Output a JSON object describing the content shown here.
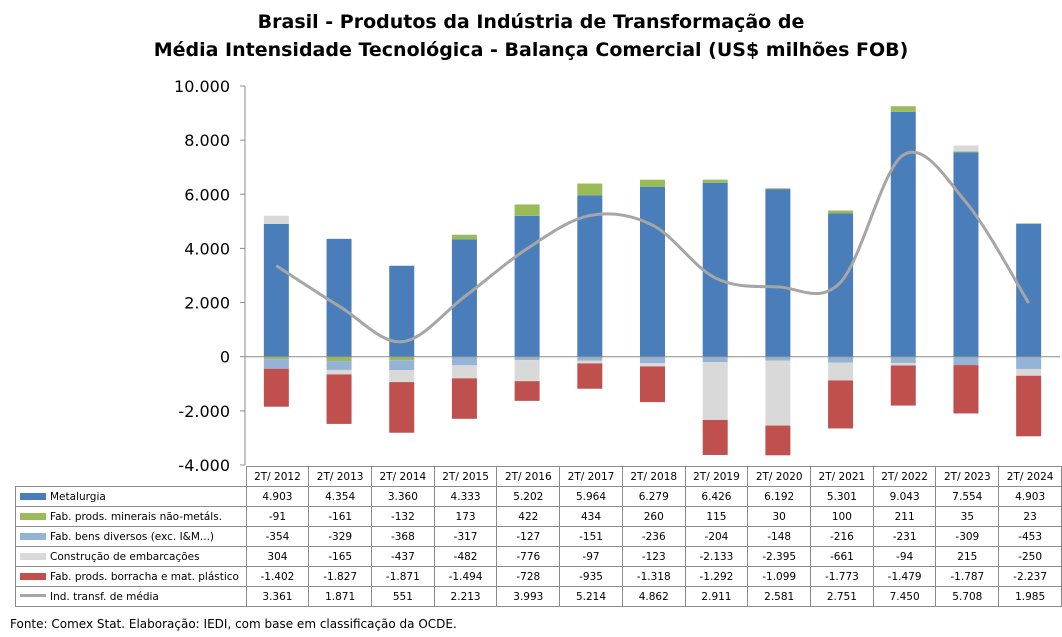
{
  "title": {
    "line1": "Brasil - Produtos da Indústria de Transformação de",
    "line2": "Média Intensidade Tecnológica - Balança Comercial (US$ milhões FOB)"
  },
  "source_note": "Fonte:  Comex Stat. Elaboração: IEDI, com base em classificação da OCDE.",
  "chart_data": {
    "type": "bar",
    "stacked": true,
    "title": "Brasil - Produtos da Indústria de Transformação de Média Intensidade Tecnológica - Balança Comercial (US$ milhões FOB)",
    "categories": [
      "2T/ 2012",
      "2T/ 2013",
      "2T/ 2014",
      "2T/ 2015",
      "2T/ 2016",
      "2T/ 2017",
      "2T/ 2018",
      "2T/ 2019",
      "2T/ 2020",
      "2T/ 2021",
      "2T/ 2022",
      "2T/ 2023",
      "2T/ 2024"
    ],
    "ylim": [
      -4000,
      10000
    ],
    "yticks": [
      -4000,
      -2000,
      0,
      2000,
      4000,
      6000,
      8000,
      10000
    ],
    "ytick_labels": [
      "-4.000",
      "-2.000",
      "0",
      "2.000",
      "4.000",
      "6.000",
      "8.000",
      "10.000"
    ],
    "grid": false,
    "legend": "data table below chart",
    "series": [
      {
        "name": "Metalurgia",
        "kind": "bar",
        "color": "#4a7ebb",
        "values": [
          4903,
          4354,
          3360,
          4333,
          5202,
          5964,
          6279,
          6426,
          6192,
          5301,
          9043,
          7554,
          4903
        ],
        "labels": [
          "4.903",
          "4.354",
          "3.360",
          "4.333",
          "5.202",
          "5.964",
          "6.279",
          "6.426",
          "6.192",
          "5.301",
          "9.043",
          "7.554",
          "4.903"
        ]
      },
      {
        "name": "Fab. prods. minerais não-metáls.",
        "kind": "bar",
        "color": "#9bbb59",
        "values": [
          -91,
          -161,
          -132,
          173,
          422,
          434,
          260,
          115,
          30,
          100,
          211,
          35,
          23
        ],
        "labels": [
          "-91",
          "-161",
          "-132",
          "173",
          "422",
          "434",
          "260",
          "115",
          "30",
          "100",
          "211",
          "35",
          "23"
        ]
      },
      {
        "name": "Fab. bens diversos (exc. I&M...)",
        "kind": "bar",
        "color": "#95b3d7",
        "values": [
          -354,
          -329,
          -368,
          -317,
          -127,
          -151,
          -236,
          -204,
          -148,
          -216,
          -231,
          -309,
          -453
        ],
        "labels": [
          "-354",
          "-329",
          "-368",
          "-317",
          "-127",
          "-151",
          "-236",
          "-204",
          "-148",
          "-216",
          "-231",
          "-309",
          "-453"
        ]
      },
      {
        "name": "Construção de embarcações",
        "kind": "bar",
        "color": "#d9d9d9",
        "values": [
          304,
          -165,
          -437,
          -482,
          -776,
          -97,
          -123,
          -2133,
          -2395,
          -661,
          -94,
          215,
          -250
        ],
        "labels": [
          "304",
          "-165",
          "-437",
          "-482",
          "-776",
          "-97",
          "-123",
          "-2.133",
          "-2.395",
          "-661",
          "-94",
          "215",
          "-250"
        ]
      },
      {
        "name": "Fab. prods. borracha e mat. plástico",
        "kind": "bar",
        "color": "#c0504d",
        "values": [
          -1402,
          -1827,
          -1871,
          -1494,
          -728,
          -935,
          -1318,
          -1292,
          -1099,
          -1773,
          -1479,
          -1787,
          -2237
        ],
        "labels": [
          "-1.402",
          "-1.827",
          "-1.871",
          "-1.494",
          "-728",
          "-935",
          "-1.318",
          "-1.292",
          "-1.099",
          "-1.773",
          "-1.479",
          "-1.787",
          "-2.237"
        ]
      },
      {
        "name": "Ind. transf. de média",
        "kind": "line",
        "color": "#a6a6a6",
        "values": [
          3361,
          1871,
          551,
          2213,
          3993,
          5214,
          4862,
          2911,
          2581,
          2751,
          7450,
          5708,
          1985
        ],
        "labels": [
          "3.361",
          "1.871",
          "551",
          "2.213",
          "3.993",
          "5.214",
          "4.862",
          "2.911",
          "2.581",
          "2.751",
          "7.450",
          "5.708",
          "1.985"
        ]
      }
    ]
  }
}
